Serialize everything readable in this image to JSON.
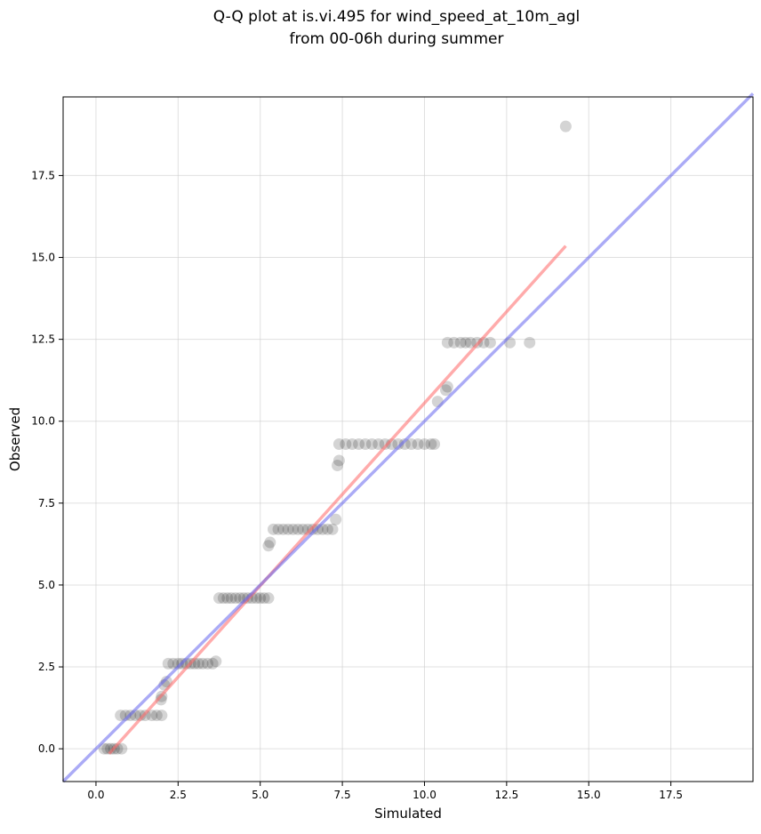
{
  "chart_data": {
    "type": "scatter",
    "title_line1": "Q-Q plot at is.vi.495 for wind_speed_at_10m_agl",
    "title_line2": "from 00-06h during summer",
    "xlabel": "Simulated",
    "ylabel": "Observed",
    "xlim": [
      -1.0,
      20.0
    ],
    "ylim": [
      -1.0,
      19.9
    ],
    "x_ticks": [
      0.0,
      2.5,
      5.0,
      7.5,
      10.0,
      12.5,
      15.0,
      17.5
    ],
    "x_tick_labels": [
      "0.0",
      "2.5",
      "5.0",
      "7.5",
      "10.0",
      "12.5",
      "15.0",
      "17.5"
    ],
    "y_ticks": [
      0.0,
      2.5,
      5.0,
      7.5,
      10.0,
      12.5,
      15.0,
      17.5
    ],
    "y_tick_labels": [
      "0.0",
      "2.5",
      "5.0",
      "7.5",
      "10.0",
      "12.5",
      "15.0",
      "17.5"
    ],
    "grid": true,
    "point_color": "#000000",
    "points": [
      {
        "x": 0.25,
        "y": 0.0
      },
      {
        "x": 0.35,
        "y": 0.0
      },
      {
        "x": 0.45,
        "y": 0.0
      },
      {
        "x": 0.55,
        "y": 0.0
      },
      {
        "x": 0.65,
        "y": 0.0
      },
      {
        "x": 0.78,
        "y": 0.0
      },
      {
        "x": 0.75,
        "y": 1.02
      },
      {
        "x": 0.9,
        "y": 1.02
      },
      {
        "x": 1.05,
        "y": 1.02
      },
      {
        "x": 1.2,
        "y": 1.02
      },
      {
        "x": 1.35,
        "y": 1.02
      },
      {
        "x": 1.5,
        "y": 1.02
      },
      {
        "x": 1.7,
        "y": 1.02
      },
      {
        "x": 1.85,
        "y": 1.02
      },
      {
        "x": 2.0,
        "y": 1.02
      },
      {
        "x": 1.98,
        "y": 1.5
      },
      {
        "x": 2.0,
        "y": 1.6
      },
      {
        "x": 2.08,
        "y": 1.95
      },
      {
        "x": 2.15,
        "y": 2.05
      },
      {
        "x": 2.2,
        "y": 2.6
      },
      {
        "x": 2.35,
        "y": 2.6
      },
      {
        "x": 2.5,
        "y": 2.6
      },
      {
        "x": 2.62,
        "y": 2.6
      },
      {
        "x": 2.75,
        "y": 2.6
      },
      {
        "x": 2.88,
        "y": 2.6
      },
      {
        "x": 3.0,
        "y": 2.6
      },
      {
        "x": 3.12,
        "y": 2.6
      },
      {
        "x": 3.25,
        "y": 2.6
      },
      {
        "x": 3.4,
        "y": 2.6
      },
      {
        "x": 3.55,
        "y": 2.6
      },
      {
        "x": 3.65,
        "y": 2.67
      },
      {
        "x": 3.75,
        "y": 4.6
      },
      {
        "x": 3.88,
        "y": 4.6
      },
      {
        "x": 4.0,
        "y": 4.6
      },
      {
        "x": 4.12,
        "y": 4.6
      },
      {
        "x": 4.25,
        "y": 4.6
      },
      {
        "x": 4.38,
        "y": 4.6
      },
      {
        "x": 4.5,
        "y": 4.6
      },
      {
        "x": 4.62,
        "y": 4.6
      },
      {
        "x": 4.75,
        "y": 4.6
      },
      {
        "x": 4.88,
        "y": 4.6
      },
      {
        "x": 5.0,
        "y": 4.6
      },
      {
        "x": 5.12,
        "y": 4.6
      },
      {
        "x": 5.25,
        "y": 4.6
      },
      {
        "x": 5.25,
        "y": 6.2
      },
      {
        "x": 5.3,
        "y": 6.3
      },
      {
        "x": 5.4,
        "y": 6.7
      },
      {
        "x": 5.55,
        "y": 6.7
      },
      {
        "x": 5.7,
        "y": 6.7
      },
      {
        "x": 5.85,
        "y": 6.7
      },
      {
        "x": 6.0,
        "y": 6.7
      },
      {
        "x": 6.15,
        "y": 6.7
      },
      {
        "x": 6.3,
        "y": 6.7
      },
      {
        "x": 6.45,
        "y": 6.7
      },
      {
        "x": 6.6,
        "y": 6.7
      },
      {
        "x": 6.75,
        "y": 6.7
      },
      {
        "x": 6.9,
        "y": 6.7
      },
      {
        "x": 7.05,
        "y": 6.7
      },
      {
        "x": 7.2,
        "y": 6.7
      },
      {
        "x": 7.3,
        "y": 7.0
      },
      {
        "x": 7.35,
        "y": 8.65
      },
      {
        "x": 7.4,
        "y": 8.8
      },
      {
        "x": 7.4,
        "y": 9.3
      },
      {
        "x": 7.6,
        "y": 9.3
      },
      {
        "x": 7.8,
        "y": 9.3
      },
      {
        "x": 8.0,
        "y": 9.3
      },
      {
        "x": 8.2,
        "y": 9.3
      },
      {
        "x": 8.4,
        "y": 9.3
      },
      {
        "x": 8.6,
        "y": 9.3
      },
      {
        "x": 8.8,
        "y": 9.3
      },
      {
        "x": 9.0,
        "y": 9.3
      },
      {
        "x": 9.2,
        "y": 9.3
      },
      {
        "x": 9.4,
        "y": 9.3
      },
      {
        "x": 9.6,
        "y": 9.3
      },
      {
        "x": 9.8,
        "y": 9.3
      },
      {
        "x": 10.0,
        "y": 9.3
      },
      {
        "x": 10.2,
        "y": 9.3
      },
      {
        "x": 10.3,
        "y": 9.3
      },
      {
        "x": 10.4,
        "y": 10.6
      },
      {
        "x": 10.65,
        "y": 10.95
      },
      {
        "x": 10.7,
        "y": 11.05
      },
      {
        "x": 10.7,
        "y": 12.4
      },
      {
        "x": 10.9,
        "y": 12.4
      },
      {
        "x": 11.1,
        "y": 12.4
      },
      {
        "x": 11.25,
        "y": 12.4
      },
      {
        "x": 11.4,
        "y": 12.4
      },
      {
        "x": 11.6,
        "y": 12.4
      },
      {
        "x": 11.8,
        "y": 12.4
      },
      {
        "x": 12.0,
        "y": 12.4
      },
      {
        "x": 12.6,
        "y": 12.4
      },
      {
        "x": 13.2,
        "y": 12.4
      },
      {
        "x": 14.3,
        "y": 19.0
      }
    ],
    "fit_line": {
      "color": "#ff6666",
      "x": [
        0.4,
        14.3
      ],
      "y": [
        -0.15,
        15.35
      ]
    },
    "identity_line": {
      "color": "#6666ee",
      "x": [
        -1.0,
        20.0
      ],
      "y": [
        -1.0,
        20.0
      ]
    }
  }
}
